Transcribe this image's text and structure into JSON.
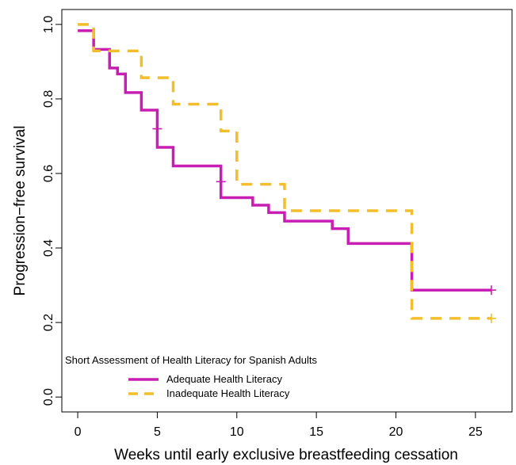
{
  "chart_data": {
    "type": "line",
    "subtype": "step (Kaplan-Meier survival curves)",
    "title": "",
    "xlabel": "Weeks until early exclusive breastfeeding cessation",
    "ylabel": "Progression−free survival",
    "xlim": [
      -1,
      27.3
    ],
    "ylim": [
      -0.04,
      1.04
    ],
    "x_ticks": [
      0,
      5,
      10,
      15,
      20,
      25
    ],
    "x_tick_labels": [
      "0",
      "5",
      "10",
      "15",
      "20",
      "25"
    ],
    "y_ticks": [
      0.0,
      0.2,
      0.4,
      0.6,
      0.8,
      1.0
    ],
    "y_tick_labels": [
      "0.0",
      "0.2",
      "0.4",
      "0.6",
      "0.8",
      "1.0"
    ],
    "grid": false,
    "legend": {
      "title": "Short Assessment of Health Literacy for Spanish Adults",
      "placement": "bottom-left"
    },
    "series": [
      {
        "name": "Adequate Health Literacy",
        "color": "#c81eb4",
        "line_style": "solid",
        "steps": [
          [
            0,
            0.983
          ],
          [
            1,
            0.933
          ],
          [
            2,
            0.883
          ],
          [
            2.5,
            0.867
          ],
          [
            3,
            0.817
          ],
          [
            4,
            0.77
          ],
          [
            5,
            0.67
          ],
          [
            6,
            0.62
          ],
          [
            9,
            0.535
          ],
          [
            11,
            0.515
          ],
          [
            12,
            0.495
          ],
          [
            13,
            0.472
          ],
          [
            16,
            0.452
          ],
          [
            17,
            0.412
          ],
          [
            21,
            0.287
          ],
          [
            26,
            0.287
          ]
        ],
        "censored": [
          [
            5,
            0.72
          ],
          [
            9,
            0.578
          ],
          [
            26,
            0.287
          ]
        ]
      },
      {
        "name": "Inadequate Health Literacy",
        "color": "#f2be2c",
        "line_style": "dashed",
        "steps": [
          [
            0,
            1.0
          ],
          [
            1,
            0.929
          ],
          [
            4,
            0.857
          ],
          [
            6,
            0.786
          ],
          [
            9,
            0.714
          ],
          [
            10,
            0.571
          ],
          [
            13,
            0.5
          ],
          [
            21,
            0.211
          ],
          [
            26,
            0.211
          ]
        ],
        "censored": [
          [
            26,
            0.211
          ]
        ]
      }
    ]
  }
}
